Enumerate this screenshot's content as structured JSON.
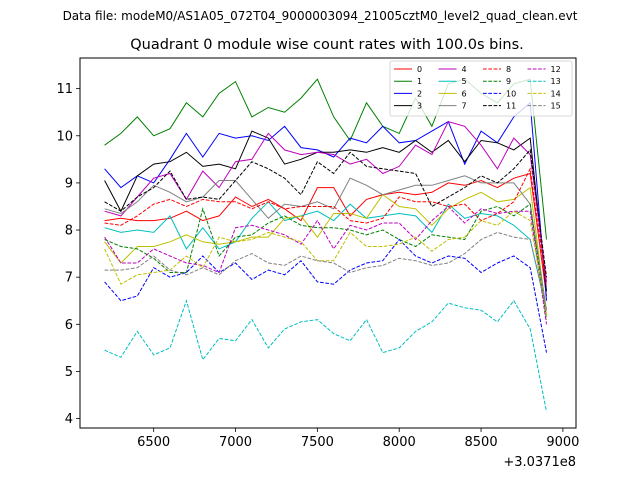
{
  "chart_data": {
    "type": "line",
    "suptitle": "Data file: modeM0/AS1A05_072T04_9000003094_21005cztM0_level2_quad_clean.evt",
    "title": "Quadrant 0 module wise count rates with 100.0s bins.",
    "xlabel": "",
    "ylabel": "",
    "x_offset_label": "+3.0371e8",
    "xlim": [
      6050,
      9080
    ],
    "ylim": [
      3.8,
      11.65
    ],
    "xticks": [
      6500,
      7000,
      7500,
      8000,
      8500,
      9000
    ],
    "yticks": [
      4,
      5,
      6,
      7,
      8,
      9,
      10,
      11
    ],
    "x": [
      6200,
      6300,
      6400,
      6500,
      6600,
      6700,
      6800,
      6900,
      7000,
      7100,
      7200,
      7300,
      7400,
      7500,
      7600,
      7700,
      7800,
      7900,
      8000,
      8100,
      8200,
      8300,
      8400,
      8500,
      8600,
      8700,
      8800,
      8900
    ],
    "legend": {
      "location": "top-right",
      "columns": 4
    },
    "series": [
      {
        "name": "0",
        "color": "#ff0000",
        "dash": "solid",
        "values": [
          8.2,
          8.25,
          8.2,
          8.2,
          8.25,
          8.4,
          8.2,
          8.3,
          8.7,
          8.5,
          8.65,
          8.45,
          8.2,
          8.9,
          8.9,
          8.3,
          8.65,
          8.75,
          8.8,
          8.75,
          8.8,
          9.0,
          8.95,
          9.05,
          8.9,
          9.1,
          9.2,
          6.6
        ]
      },
      {
        "name": "1",
        "color": "#008000",
        "dash": "solid",
        "values": [
          9.8,
          10.05,
          10.4,
          10.0,
          10.15,
          10.7,
          10.4,
          10.9,
          11.15,
          10.4,
          10.6,
          10.5,
          10.8,
          11.2,
          10.4,
          9.9,
          10.7,
          10.2,
          10.05,
          10.8,
          10.2,
          11.1,
          11.2,
          10.9,
          10.7,
          11.1,
          11.2,
          7.8
        ]
      },
      {
        "name": "2",
        "color": "#0000ff",
        "dash": "solid",
        "values": [
          9.3,
          8.9,
          9.15,
          9.0,
          9.5,
          10.05,
          9.55,
          10.05,
          9.95,
          10.0,
          9.9,
          10.2,
          9.75,
          9.7,
          9.55,
          9.95,
          9.85,
          10.2,
          9.85,
          9.9,
          10.1,
          10.3,
          9.4,
          10.1,
          9.85,
          10.4,
          10.7,
          6.5
        ]
      },
      {
        "name": "3",
        "color": "#000000",
        "dash": "solid",
        "values": [
          9.05,
          8.4,
          9.15,
          9.4,
          9.45,
          9.65,
          9.35,
          9.4,
          9.3,
          10.1,
          9.95,
          9.4,
          9.5,
          9.65,
          9.65,
          9.7,
          9.65,
          9.75,
          9.65,
          9.9,
          9.65,
          9.9,
          9.45,
          9.9,
          9.85,
          9.7,
          9.95,
          6.7
        ]
      },
      {
        "name": "4",
        "color": "#bf00bf",
        "dash": "solid",
        "values": [
          8.4,
          8.3,
          8.7,
          9.1,
          9.2,
          8.65,
          9.25,
          8.9,
          9.45,
          9.5,
          10.05,
          9.7,
          9.6,
          9.65,
          9.6,
          9.4,
          9.5,
          9.2,
          9.35,
          9.8,
          9.6,
          10.3,
          10.2,
          9.8,
          9.3,
          9.95,
          9.6,
          6.9
        ]
      },
      {
        "name": "5",
        "color": "#00bfbf",
        "dash": "solid",
        "values": [
          8.05,
          7.95,
          8.0,
          7.95,
          8.3,
          7.6,
          8.05,
          7.6,
          7.75,
          8.25,
          8.6,
          8.2,
          8.3,
          8.4,
          8.2,
          8.55,
          8.25,
          8.3,
          8.35,
          8.3,
          7.95,
          8.55,
          8.25,
          8.35,
          8.3,
          8.1,
          7.8,
          6.3
        ]
      },
      {
        "name": "6",
        "color": "#bfbf00",
        "dash": "solid",
        "values": [
          7.75,
          7.3,
          7.65,
          7.65,
          7.75,
          7.9,
          7.75,
          7.7,
          7.75,
          7.85,
          7.85,
          8.25,
          8.3,
          7.85,
          8.35,
          8.35,
          8.25,
          8.75,
          8.5,
          8.45,
          8.1,
          8.45,
          8.65,
          8.8,
          8.6,
          8.65,
          8.9,
          6.2
        ]
      },
      {
        "name": "7",
        "color": "#808080",
        "dash": "solid",
        "values": [
          8.45,
          8.35,
          8.6,
          8.95,
          8.8,
          8.6,
          8.7,
          9.05,
          9.05,
          8.65,
          8.25,
          8.55,
          8.5,
          8.6,
          8.45,
          9.1,
          8.95,
          8.75,
          8.85,
          8.95,
          8.95,
          9.05,
          9.15,
          9.0,
          9.0,
          9.0,
          8.55,
          6.3
        ]
      },
      {
        "name": "8",
        "color": "#ff0000",
        "dash": "dash",
        "values": [
          8.15,
          8.1,
          8.3,
          8.55,
          8.65,
          8.5,
          8.65,
          8.6,
          8.6,
          8.45,
          8.6,
          8.45,
          8.5,
          8.5,
          8.5,
          8.2,
          8.15,
          8.25,
          8.7,
          8.6,
          8.6,
          8.5,
          8.55,
          8.2,
          8.35,
          8.6,
          9.3,
          6.8
        ]
      },
      {
        "name": "9",
        "color": "#008000",
        "dash": "dash",
        "values": [
          7.8,
          7.65,
          7.6,
          7.4,
          7.1,
          7.1,
          8.45,
          7.45,
          7.85,
          7.9,
          8.15,
          8.3,
          8.1,
          8.05,
          8.05,
          8.0,
          7.9,
          8.0,
          7.8,
          7.65,
          7.9,
          7.85,
          7.8,
          8.4,
          8.5,
          8.3,
          8.55,
          6.1
        ]
      },
      {
        "name": "10",
        "color": "#0000ff",
        "dash": "dash",
        "values": [
          6.9,
          6.5,
          6.6,
          7.2,
          7.0,
          7.1,
          7.45,
          7.1,
          7.3,
          6.95,
          7.15,
          7.05,
          7.35,
          6.9,
          6.85,
          7.15,
          7.3,
          7.35,
          7.8,
          7.45,
          7.3,
          7.45,
          7.4,
          7.1,
          7.3,
          7.45,
          7.2,
          5.4
        ]
      },
      {
        "name": "11",
        "color": "#000000",
        "dash": "dash",
        "values": [
          8.6,
          8.4,
          8.7,
          8.9,
          9.25,
          8.65,
          8.7,
          8.65,
          9.05,
          9.45,
          9.3,
          9.1,
          8.75,
          9.45,
          9.2,
          9.65,
          9.35,
          9.3,
          9.25,
          9.2,
          8.5,
          8.7,
          8.9,
          9.15,
          9.0,
          9.3,
          9.7,
          7.0
        ]
      },
      {
        "name": "12",
        "color": "#bf00bf",
        "dash": "dash",
        "values": [
          7.85,
          7.3,
          7.3,
          7.6,
          7.45,
          7.3,
          7.25,
          7.1,
          8.05,
          8.1,
          8.0,
          7.9,
          7.7,
          8.2,
          7.6,
          8.1,
          8.0,
          8.15,
          8.15,
          7.8,
          8.2,
          8.5,
          8.15,
          8.45,
          8.35,
          8.4,
          8.4,
          6.0
        ]
      },
      {
        "name": "13",
        "color": "#00bfbf",
        "dash": "dash",
        "values": [
          5.45,
          5.3,
          5.85,
          5.35,
          5.5,
          6.5,
          5.25,
          5.7,
          5.65,
          6.1,
          5.5,
          5.9,
          6.05,
          6.1,
          5.8,
          5.65,
          6.1,
          5.4,
          5.5,
          5.85,
          6.05,
          6.45,
          6.35,
          6.3,
          6.05,
          6.5,
          5.9,
          4.15
        ]
      },
      {
        "name": "14",
        "color": "#bfbf00",
        "dash": "dash",
        "values": [
          7.6,
          6.85,
          7.05,
          7.1,
          7.15,
          7.45,
          7.2,
          7.85,
          7.75,
          7.8,
          7.95,
          7.85,
          7.75,
          7.35,
          7.35,
          7.95,
          7.65,
          7.65,
          7.7,
          7.85,
          7.55,
          7.8,
          7.85,
          8.2,
          8.1,
          8.4,
          8.2,
          6.2
        ]
      },
      {
        "name": "15",
        "color": "#808080",
        "dash": "dash",
        "values": [
          7.15,
          7.15,
          7.2,
          7.45,
          7.15,
          7.05,
          7.2,
          7.05,
          7.35,
          7.5,
          7.3,
          7.25,
          7.45,
          7.35,
          7.3,
          7.1,
          7.2,
          7.25,
          7.4,
          7.35,
          7.25,
          7.3,
          7.5,
          7.8,
          7.95,
          7.85,
          7.8,
          6.3
        ]
      }
    ]
  }
}
